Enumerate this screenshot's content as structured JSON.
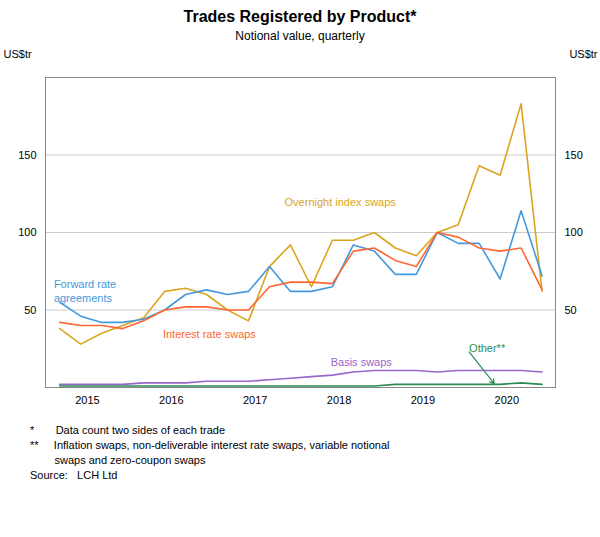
{
  "chart_data": {
    "type": "line",
    "title": "Trades Registered by Product*",
    "subtitle": "Notional value, quarterly",
    "ylabel": "US$tr",
    "y2label": "US$tr",
    "x": [
      2014.67,
      2014.92,
      2015.17,
      2015.42,
      2015.67,
      2015.92,
      2016.17,
      2016.42,
      2016.67,
      2016.92,
      2017.17,
      2017.42,
      2017.67,
      2017.92,
      2018.17,
      2018.42,
      2018.67,
      2018.92,
      2019.17,
      2019.42,
      2019.67,
      2019.92,
      2020.17,
      2020.42
    ],
    "xlim": [
      2014.5,
      2020.58
    ],
    "xticks": [
      2015,
      2016,
      2017,
      2018,
      2019,
      2020
    ],
    "ylim": [
      0,
      200
    ],
    "yticks": [
      {
        "value": 0,
        "label": null
      },
      50,
      100,
      150
    ],
    "y2lim": [
      0,
      200
    ],
    "y2ticks": [
      {
        "value": 0,
        "label": null
      },
      50,
      100,
      150
    ],
    "grid": true,
    "series": [
      {
        "name": "Overnight index swaps",
        "color": "#DAA520",
        "label_x": 2017.35,
        "label_y": 123,
        "values": [
          38,
          28,
          35,
          40,
          45,
          62,
          64,
          60,
          50,
          43,
          78,
          92,
          65,
          95,
          95,
          100,
          90,
          85,
          100,
          105,
          143,
          137,
          183,
          62
        ]
      },
      {
        "name": "Forward rate\nagreements",
        "color": "#4499DD",
        "label_x": 2014.6,
        "label_y": 70,
        "values": [
          55,
          46,
          42,
          42,
          44,
          50,
          60,
          63,
          60,
          62,
          78,
          62,
          62,
          65,
          92,
          88,
          73,
          73,
          100,
          93,
          93,
          70,
          114,
          72
        ]
      },
      {
        "name": "Interest rate swaps",
        "color": "#FF6633",
        "label_x": 2015.9,
        "label_y": 38,
        "values": [
          42,
          40,
          40,
          38,
          43,
          50,
          52,
          52,
          50,
          50,
          65,
          68,
          68,
          67,
          88,
          90,
          82,
          78,
          100,
          97,
          90,
          88,
          90,
          63
        ]
      },
      {
        "name": "Basis swaps",
        "color": "#9966CC",
        "label_x": 2017.9,
        "label_y": 20,
        "values": [
          2,
          2,
          2,
          2,
          3,
          3,
          3,
          4,
          4,
          4,
          5,
          6,
          7,
          8,
          10,
          11,
          11,
          11,
          10,
          11,
          11,
          11,
          11,
          10
        ]
      },
      {
        "name": "Other**",
        "color": "#2E8B57",
        "label_x": 2019.55,
        "label_y": 23,
        "arrow_x": 2019.85,
        "arrow_y": 2.5,
        "values": [
          1,
          1,
          1,
          1,
          1,
          1,
          1,
          1,
          1,
          1,
          1,
          1,
          1,
          1,
          1,
          1,
          2,
          2,
          2,
          2,
          2,
          2,
          3,
          2
        ]
      }
    ],
    "footnotes": [
      "*       Data count two sides of each trade",
      "**     Inflation swaps, non-deliverable interest rate swaps, variable notional",
      "        swaps and zero-coupon swaps",
      "Source:   LCH Ltd"
    ]
  }
}
